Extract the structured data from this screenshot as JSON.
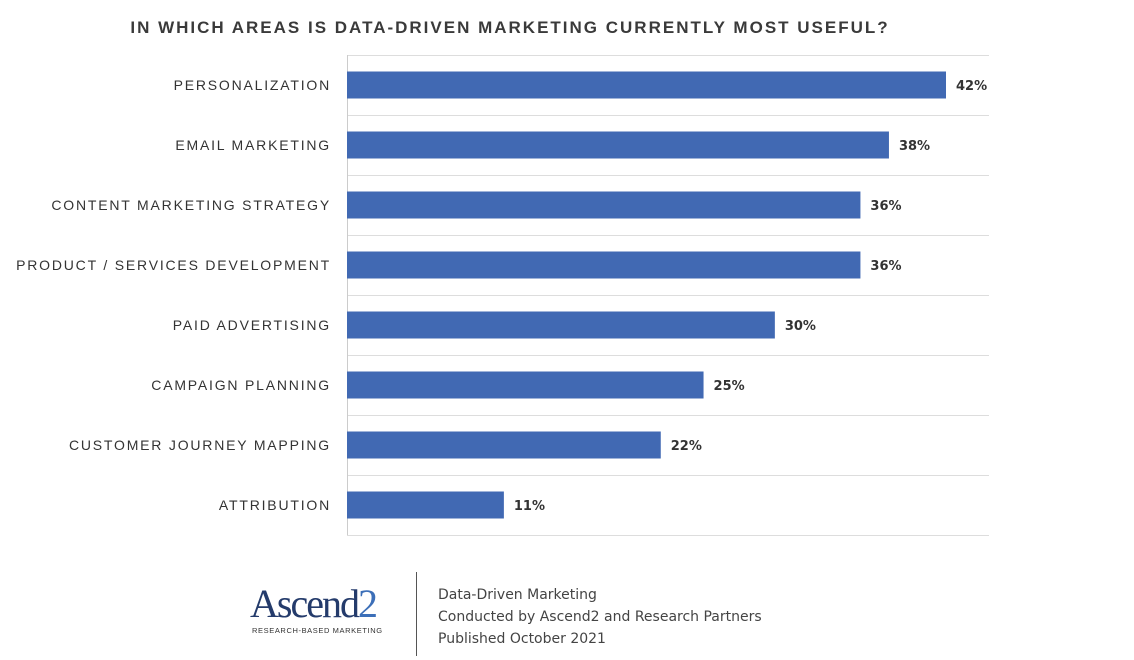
{
  "chart_data": {
    "type": "bar",
    "orientation": "horizontal",
    "title": "IN WHICH AREAS IS DATA-DRIVEN MARKETING CURRENTLY MOST USEFUL?",
    "categories": [
      "PERSONALIZATION",
      "EMAIL MARKETING",
      "CONTENT MARKETING STRATEGY",
      "PRODUCT / SERVICES DEVELOPMENT",
      "PAID ADVERTISING",
      "CAMPAIGN PLANNING",
      "CUSTOMER JOURNEY MAPPING",
      "ATTRIBUTION"
    ],
    "values": [
      42,
      38,
      36,
      36,
      30,
      25,
      22,
      11
    ],
    "value_labels": [
      "42%",
      "38%",
      "36%",
      "36%",
      "30%",
      "25%",
      "22%",
      "11%"
    ],
    "xlim": [
      0,
      45
    ],
    "grid": true,
    "bar_color": "#4169b3"
  },
  "footer": {
    "logo_text": "Ascend",
    "logo_digit": "2",
    "logo_tagline": "RESEARCH-BASED MARKETING",
    "source_lines": [
      "Data-Driven Marketing",
      "Conducted by Ascend2 and Research Partners",
      "Published October 2021"
    ]
  }
}
